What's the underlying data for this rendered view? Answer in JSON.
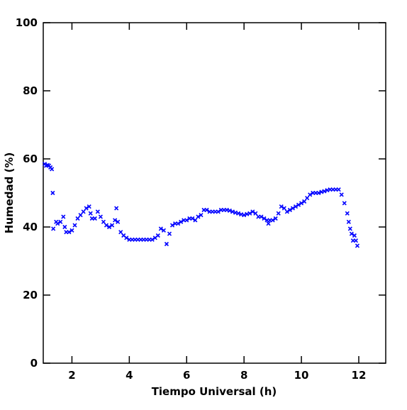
{
  "chart_data": {
    "type": "scatter",
    "xlabel": "Tiempo Universal (h)",
    "ylabel": "Humedad (%)",
    "xlim": [
      1,
      12.94
    ],
    "ylim": [
      0,
      100
    ],
    "xticks": [
      2,
      4,
      6,
      8,
      10,
      12
    ],
    "yticks": [
      0,
      20,
      40,
      60,
      80,
      100
    ],
    "series": [
      {
        "color": "#0000ff",
        "marker": "x",
        "x": [
          1.05,
          1.1,
          1.15,
          1.2,
          1.25,
          1.3,
          1.33,
          1.35,
          1.45,
          1.5,
          1.6,
          1.7,
          1.75,
          1.8,
          1.9,
          2.0,
          2.1,
          2.2,
          2.3,
          2.4,
          2.5,
          2.6,
          2.65,
          2.7,
          2.8,
          2.9,
          3.0,
          3.1,
          3.2,
          3.3,
          3.4,
          3.5,
          3.55,
          3.6,
          3.7,
          3.8,
          3.9,
          4.0,
          4.1,
          4.2,
          4.3,
          4.4,
          4.5,
          4.6,
          4.7,
          4.8,
          4.9,
          5.0,
          5.1,
          5.2,
          5.3,
          5.4,
          5.5,
          5.6,
          5.7,
          5.8,
          5.9,
          6.0,
          6.1,
          6.2,
          6.3,
          6.4,
          6.5,
          6.6,
          6.7,
          6.8,
          6.9,
          7.0,
          7.1,
          7.2,
          7.3,
          7.4,
          7.5,
          7.6,
          7.7,
          7.8,
          7.9,
          8.0,
          8.1,
          8.2,
          8.3,
          8.4,
          8.5,
          8.6,
          8.7,
          8.8,
          8.85,
          8.9,
          9.0,
          9.1,
          9.2,
          9.3,
          9.4,
          9.5,
          9.6,
          9.7,
          9.8,
          9.9,
          10.0,
          10.1,
          10.2,
          10.3,
          10.4,
          10.5,
          10.6,
          10.7,
          10.8,
          10.9,
          11.0,
          11.1,
          11.2,
          11.3,
          11.4,
          11.5,
          11.6,
          11.65,
          11.7,
          11.75,
          11.8,
          11.85,
          11.9,
          11.95
        ],
        "values": [
          58.5,
          58,
          58.2,
          58,
          57.5,
          57,
          50,
          39.5,
          41.5,
          41,
          41.5,
          43,
          40,
          38.5,
          38.5,
          39,
          40.5,
          42.5,
          43.5,
          44.5,
          45.5,
          46,
          44,
          42.5,
          42.5,
          44.5,
          43,
          41.5,
          40.5,
          40,
          40.5,
          42,
          45.5,
          41.5,
          38.5,
          37.5,
          36.8,
          36.3,
          36.3,
          36.3,
          36.3,
          36.3,
          36.3,
          36.3,
          36.3,
          36.3,
          36.8,
          37.5,
          39.5,
          39,
          35,
          38,
          40.5,
          41,
          41,
          41.5,
          42,
          42,
          42.5,
          42.5,
          42,
          43,
          43.5,
          45,
          45,
          44.5,
          44.5,
          44.5,
          44.5,
          45,
          45,
          45,
          44.8,
          44.5,
          44.2,
          44,
          43.7,
          43.5,
          43.8,
          44,
          44.5,
          44,
          43,
          43,
          42.5,
          42,
          41,
          42,
          42,
          42.5,
          44,
          46,
          45.5,
          44.5,
          45,
          45.5,
          46,
          46.5,
          47,
          47.5,
          48.5,
          49.5,
          50,
          50,
          50,
          50.3,
          50.5,
          50.8,
          51,
          51,
          51,
          51,
          49.5,
          47,
          44,
          41.5,
          39.5,
          38,
          36,
          37.5,
          36,
          34.5
        ]
      }
    ]
  }
}
